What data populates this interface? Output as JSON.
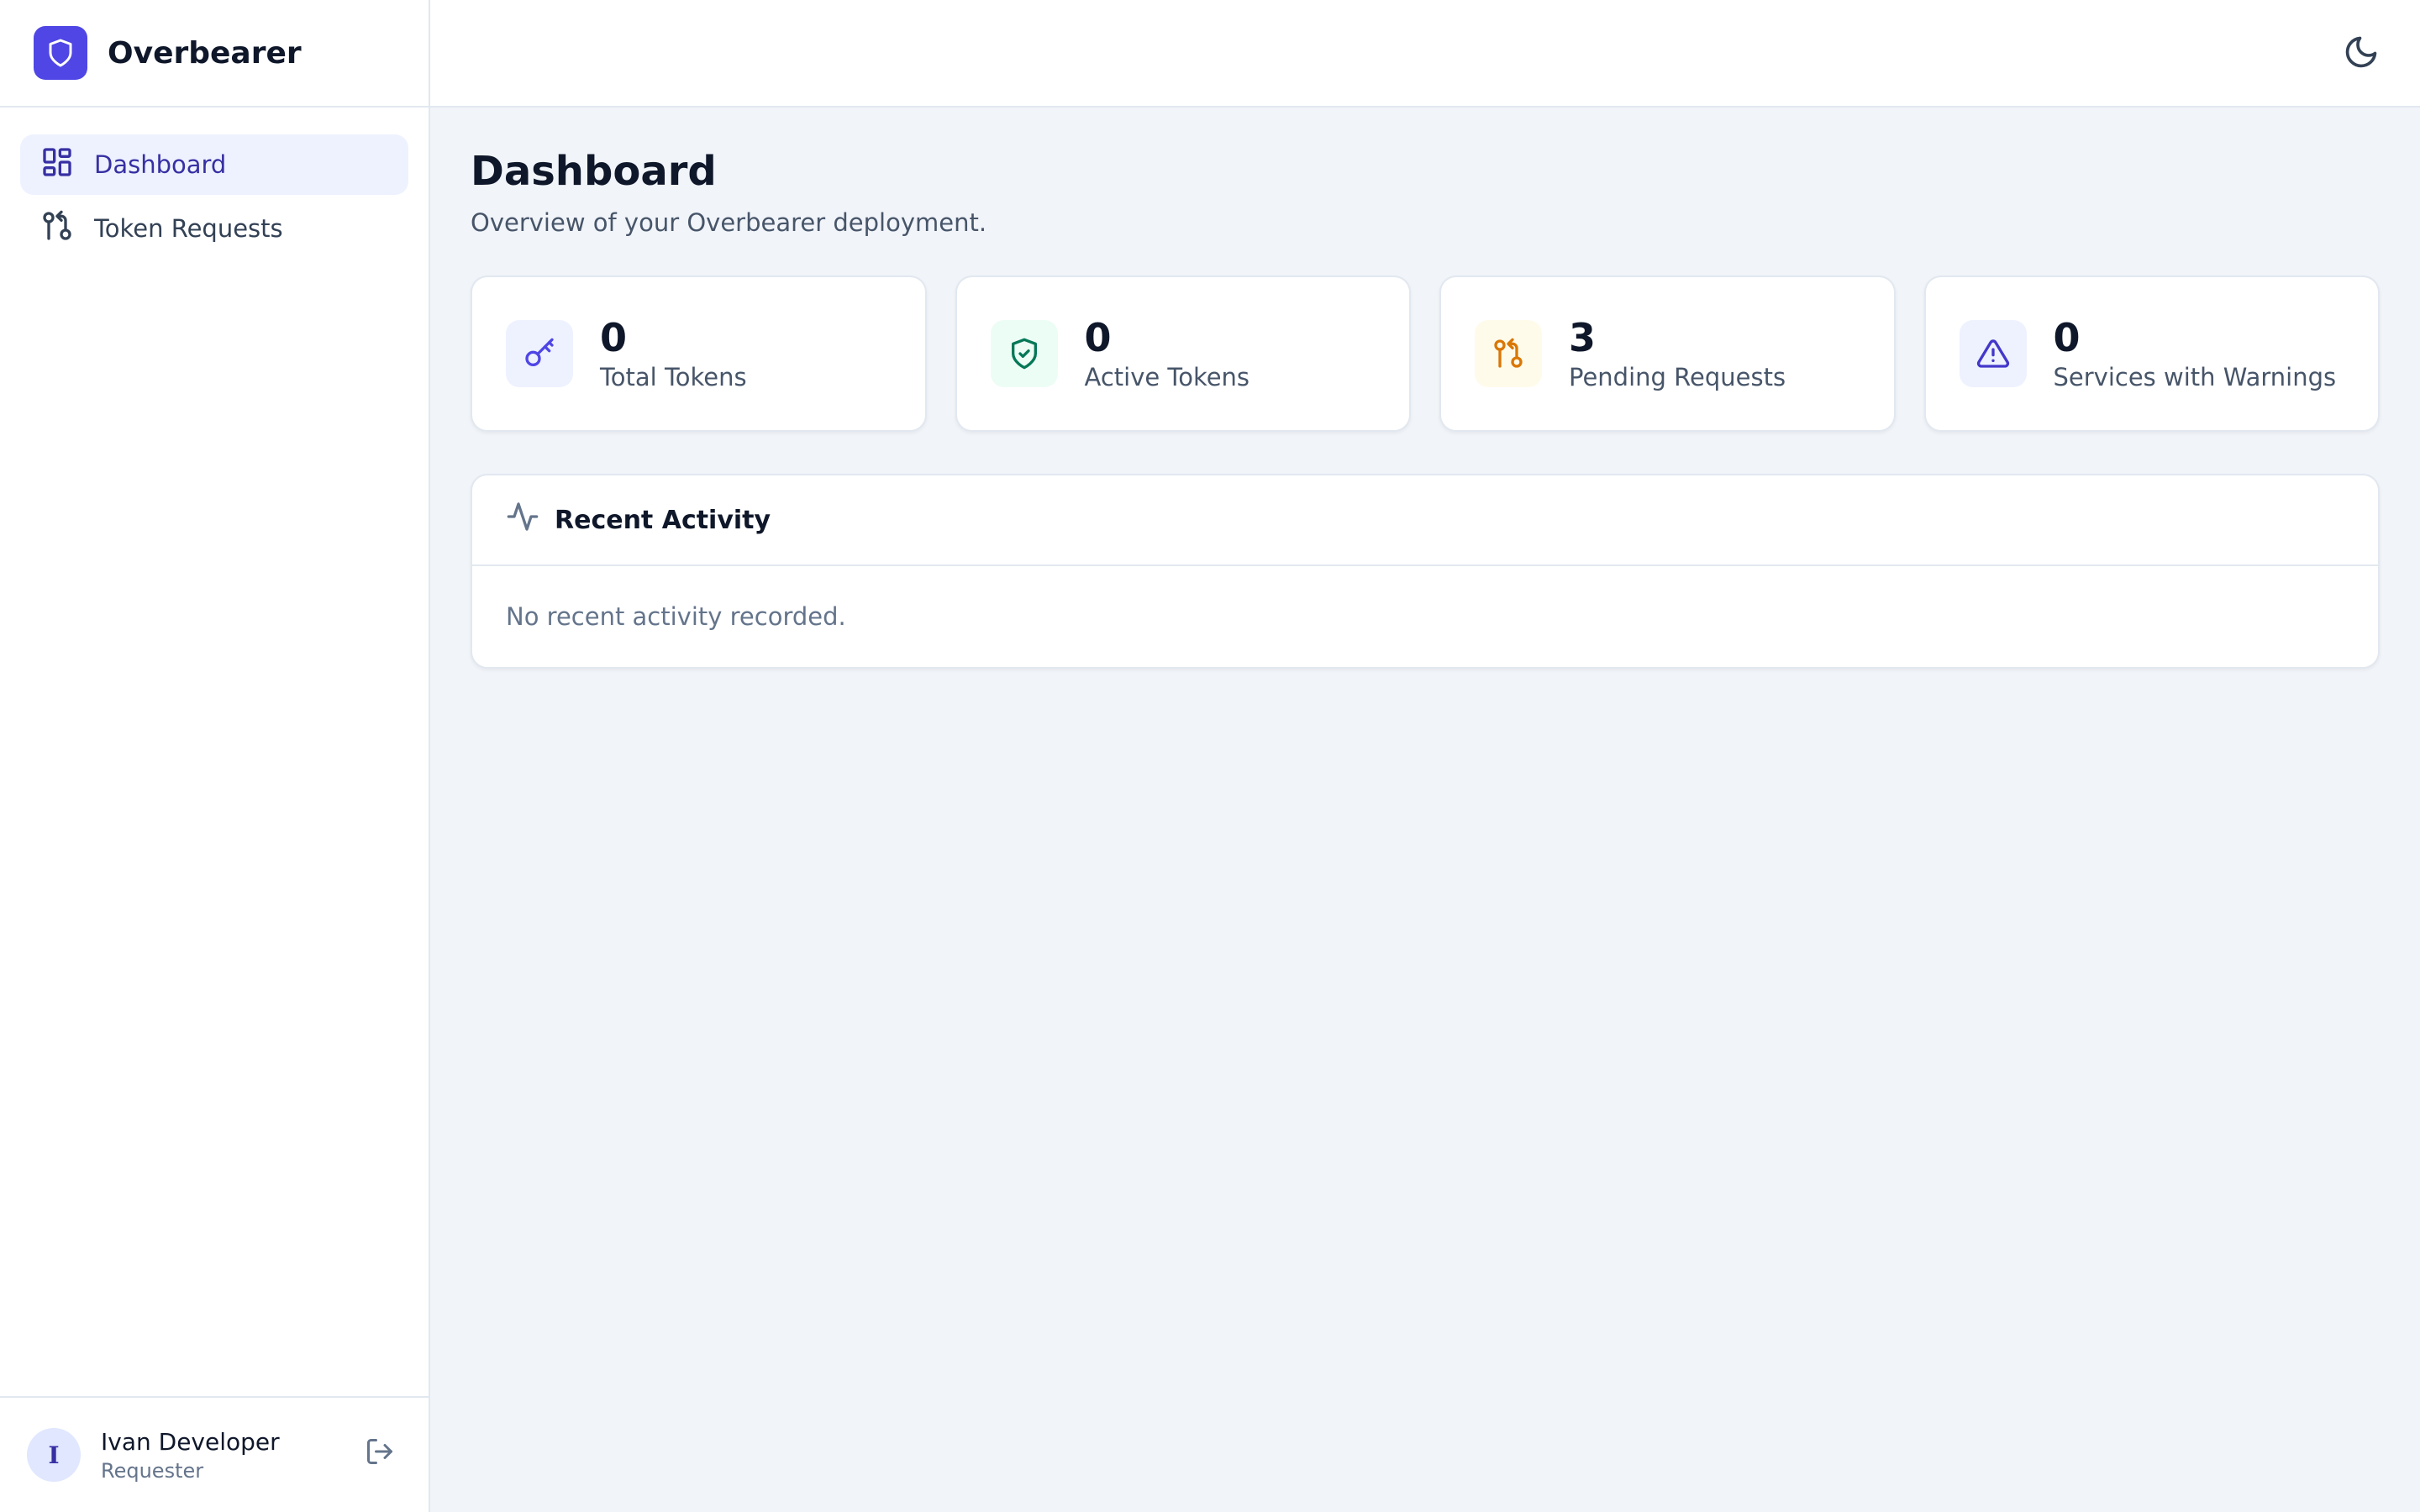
{
  "app": {
    "name": "Overbearer",
    "logo_icon": "shield-icon",
    "accent": "#4f46e5"
  },
  "sidebar": {
    "items": [
      {
        "label": "Dashboard",
        "icon": "layout-dashboard-icon",
        "active": true
      },
      {
        "label": "Token Requests",
        "icon": "git-pull-request-icon",
        "active": false
      }
    ]
  },
  "user": {
    "initial": "I",
    "name": "Ivan Developer",
    "role": "Requester",
    "logout_icon": "log-out-icon"
  },
  "topbar": {
    "theme_icon": "moon-icon"
  },
  "page": {
    "title": "Dashboard",
    "subtitle": "Overview of your Overbearer deployment."
  },
  "stats": [
    {
      "value": "0",
      "label": "Total Tokens",
      "icon": "key-icon",
      "color": "#4f46e5",
      "bg": "#eef2ff"
    },
    {
      "value": "0",
      "label": "Active Tokens",
      "icon": "shield-check-icon",
      "color": "#047857",
      "bg": "#ecfdf5"
    },
    {
      "value": "3",
      "label": "Pending Requests",
      "icon": "git-pull-request-icon",
      "color": "#d97706",
      "bg": "#fffbeb"
    },
    {
      "value": "0",
      "label": "Services with Warnings",
      "icon": "alert-triangle-icon",
      "color": "#4338ca",
      "bg": "#eef2ff"
    }
  ],
  "activity": {
    "title": "Recent Activity",
    "icon": "activity-icon",
    "empty_text": "No recent activity recorded."
  }
}
